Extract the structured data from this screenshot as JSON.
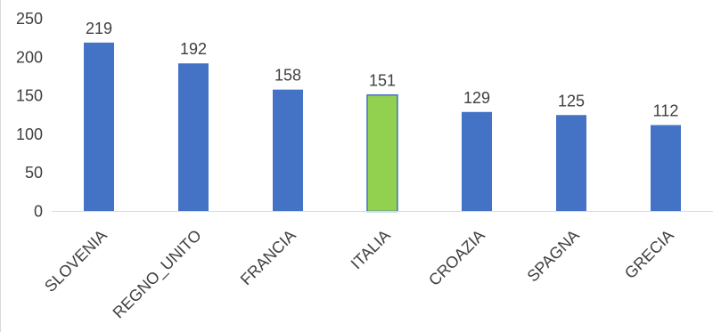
{
  "chart_data": {
    "type": "bar",
    "categories": [
      "SLOVENIA",
      "REGNO_UNITO",
      "FRANCIA",
      "ITALIA",
      "CROAZIA",
      "SPAGNA",
      "GRECIA"
    ],
    "values": [
      219,
      192,
      158,
      151,
      129,
      125,
      112
    ],
    "data_labels": [
      "219",
      "192",
      "158",
      "151",
      "129",
      "125",
      "112"
    ],
    "highlight_category": "ITALIA",
    "ylim": [
      0,
      250
    ],
    "yticks": [
      0,
      50,
      100,
      150,
      200,
      250
    ],
    "ytick_labels": [
      "0",
      "50",
      "100",
      "150",
      "200",
      "250"
    ],
    "title": "",
    "xlabel": "",
    "ylabel": "",
    "grid": false,
    "legend": "none",
    "colors": {
      "bar": "#4472C4",
      "highlight": "#92D050",
      "axis": "#D9D9D9",
      "text": "#404040",
      "frame": "#D9D9D9"
    }
  }
}
